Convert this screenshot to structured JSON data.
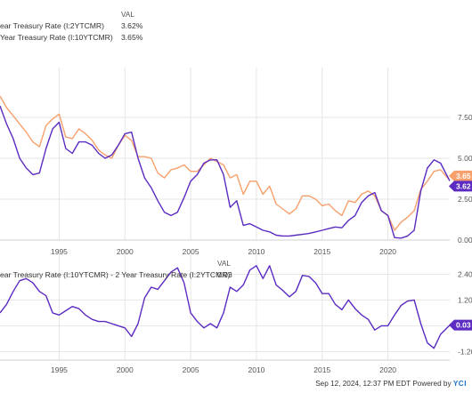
{
  "legend_top": {
    "header": "VAL",
    "rows": [
      {
        "name": "ear Treasury Rate (I:2YTCMR)",
        "value": "3.62%"
      },
      {
        "name": "Year Treasury Rate (I:10YTCMR)",
        "value": "3.65%"
      }
    ]
  },
  "legend_bottom": {
    "header": "VAL",
    "rows": [
      {
        "name": "ear Treasury Rate (I:10YTCMR) - 2 Year Treasury Rate (I:2YTCMR)",
        "value": "0.03"
      }
    ]
  },
  "footer": {
    "timestamp": "Sep 12, 2024, 12:37 PM EDT",
    "powered_by": "Powered by",
    "logo_text": "YCI"
  },
  "colors": {
    "two_year": "#5b2bc2",
    "ten_year": "#f7a06b",
    "spread": "#5b2bc2",
    "grid": "#e6e6e6"
  },
  "chart_data": [
    {
      "type": "line",
      "x_ticks": [
        "1995",
        "2000",
        "2005",
        "2010",
        "2015",
        "2020"
      ],
      "y_ticks": [
        "0.00",
        "2.50",
        "5.00",
        "7.50"
      ],
      "ylim": [
        0,
        10
      ],
      "xlim": [
        1990.5,
        2024.7
      ],
      "end_labels": [
        "3.65",
        "3.62"
      ],
      "series": [
        {
          "name": "ear Treasury Rate (I:2YTCMR)",
          "color": "#5b2bc2",
          "x": [
            1990.5,
            1991,
            1991.5,
            1992,
            1992.5,
            1993,
            1993.5,
            1994,
            1994.5,
            1995,
            1995.5,
            1996,
            1996.5,
            1997,
            1997.5,
            1998,
            1998.5,
            1999,
            1999.5,
            2000,
            2000.5,
            2001,
            2001.5,
            2002,
            2002.5,
            2003,
            2003.5,
            2004,
            2004.5,
            2005,
            2005.5,
            2006,
            2006.5,
            2007,
            2007.5,
            2008,
            2008.5,
            2009,
            2009.5,
            2010,
            2010.5,
            2011,
            2011.5,
            2012,
            2012.5,
            2013,
            2013.5,
            2014,
            2014.5,
            2015,
            2015.5,
            2016,
            2016.5,
            2017,
            2017.5,
            2018,
            2018.5,
            2019,
            2019.5,
            2020,
            2020.5,
            2021,
            2021.5,
            2022,
            2022.5,
            2023,
            2023.5,
            2024,
            2024.7
          ],
          "values": [
            8.2,
            7.1,
            6.2,
            5.0,
            4.4,
            4.0,
            4.1,
            5.6,
            6.8,
            7.2,
            5.6,
            5.3,
            6.0,
            6.0,
            5.8,
            5.3,
            5.0,
            5.2,
            5.8,
            6.5,
            6.6,
            5.0,
            3.8,
            3.2,
            2.4,
            1.7,
            1.5,
            1.7,
            2.6,
            3.6,
            4.0,
            4.7,
            4.9,
            4.9,
            4.0,
            2.0,
            2.4,
            0.9,
            1.0,
            0.8,
            0.6,
            0.5,
            0.3,
            0.25,
            0.25,
            0.3,
            0.35,
            0.4,
            0.5,
            0.6,
            0.7,
            0.8,
            0.75,
            1.2,
            1.5,
            2.3,
            2.7,
            2.9,
            1.8,
            1.5,
            0.15,
            0.12,
            0.25,
            0.6,
            3.0,
            4.4,
            4.9,
            4.7,
            3.62
          ]
        },
        {
          "name": "Year Treasury Rate (I:10YTCMR)",
          "color": "#f7a06b",
          "x": [
            1990.5,
            1991,
            1991.5,
            1992,
            1992.5,
            1993,
            1993.5,
            1994,
            1994.5,
            1995,
            1995.5,
            1996,
            1996.5,
            1997,
            1997.5,
            1998,
            1998.5,
            1999,
            1999.5,
            2000,
            2000.5,
            2001,
            2001.5,
            2002,
            2002.5,
            2003,
            2003.5,
            2004,
            2004.5,
            2005,
            2005.5,
            2006,
            2006.5,
            2007,
            2007.5,
            2008,
            2008.5,
            2009,
            2009.5,
            2010,
            2010.5,
            2011,
            2011.5,
            2012,
            2012.5,
            2013,
            2013.5,
            2014,
            2014.5,
            2015,
            2015.5,
            2016,
            2016.5,
            2017,
            2017.5,
            2018,
            2018.5,
            2019,
            2019.5,
            2020,
            2020.5,
            2021,
            2021.5,
            2022,
            2022.5,
            2023,
            2023.5,
            2024,
            2024.7
          ],
          "values": [
            8.8,
            8.1,
            7.6,
            7.1,
            6.6,
            6.0,
            5.7,
            7.0,
            7.4,
            7.7,
            6.3,
            6.2,
            6.8,
            6.5,
            6.1,
            5.5,
            5.2,
            5.0,
            5.8,
            6.4,
            6.1,
            5.1,
            5.1,
            5.0,
            4.1,
            3.8,
            4.3,
            4.4,
            4.6,
            4.2,
            4.2,
            4.6,
            5.0,
            4.8,
            4.6,
            3.8,
            4.0,
            2.8,
            3.6,
            3.6,
            2.8,
            3.3,
            2.2,
            1.9,
            1.6,
            1.9,
            2.7,
            2.7,
            2.5,
            2.1,
            2.2,
            1.8,
            1.5,
            2.4,
            2.3,
            2.8,
            3.0,
            2.7,
            1.8,
            1.5,
            0.6,
            1.1,
            1.4,
            1.8,
            3.1,
            3.6,
            4.2,
            4.3,
            3.65
          ]
        }
      ]
    },
    {
      "type": "line",
      "x_ticks": [
        "1995",
        "2000",
        "2005",
        "2010",
        "2015",
        "2020"
      ],
      "y_ticks": [
        "2.40",
        "1.20",
        "0.00",
        "-1.20"
      ],
      "ylim": [
        -1.6,
        3.0
      ],
      "xlim": [
        1990.5,
        2024.7
      ],
      "end_labels": [
        "0.03"
      ],
      "series": [
        {
          "name": "ear Treasury Rate (I:10YTCMR) - 2 Year Treasury Rate (I:2YTCMR)",
          "color": "#5b2bc2",
          "x": [
            1990.5,
            1991,
            1991.5,
            1992,
            1992.5,
            1993,
            1993.5,
            1994,
            1994.5,
            1995,
            1995.5,
            1996,
            1996.5,
            1997,
            1997.5,
            1998,
            1998.5,
            1999,
            1999.5,
            2000,
            2000.5,
            2001,
            2001.5,
            2002,
            2002.5,
            2003,
            2003.5,
            2004,
            2004.5,
            2005,
            2005.5,
            2006,
            2006.5,
            2007,
            2007.5,
            2008,
            2008.5,
            2009,
            2009.5,
            2010,
            2010.5,
            2011,
            2011.5,
            2012,
            2012.5,
            2013,
            2013.5,
            2014,
            2014.5,
            2015,
            2015.5,
            2016,
            2016.5,
            2017,
            2017.5,
            2018,
            2018.5,
            2019,
            2019.5,
            2020,
            2020.5,
            2021,
            2021.5,
            2022,
            2022.5,
            2023,
            2023.5,
            2024,
            2024.7
          ],
          "values": [
            0.6,
            1.0,
            1.6,
            2.1,
            2.2,
            2.0,
            1.6,
            1.4,
            0.6,
            0.5,
            0.7,
            0.9,
            0.8,
            0.5,
            0.3,
            0.2,
            0.2,
            0.1,
            0.0,
            -0.1,
            -0.5,
            0.1,
            1.3,
            1.8,
            1.7,
            2.1,
            2.5,
            2.7,
            2.0,
            0.6,
            0.2,
            -0.1,
            0.1,
            -0.1,
            0.6,
            1.8,
            1.6,
            1.9,
            2.6,
            2.8,
            2.2,
            2.8,
            1.9,
            1.65,
            1.35,
            1.6,
            2.35,
            2.3,
            2.0,
            1.5,
            1.5,
            1.0,
            0.75,
            1.2,
            0.8,
            0.5,
            0.3,
            -0.2,
            0.0,
            0.0,
            0.5,
            0.95,
            1.15,
            1.2,
            0.1,
            -0.8,
            -1.05,
            -0.4,
            0.03
          ]
        }
      ]
    }
  ]
}
